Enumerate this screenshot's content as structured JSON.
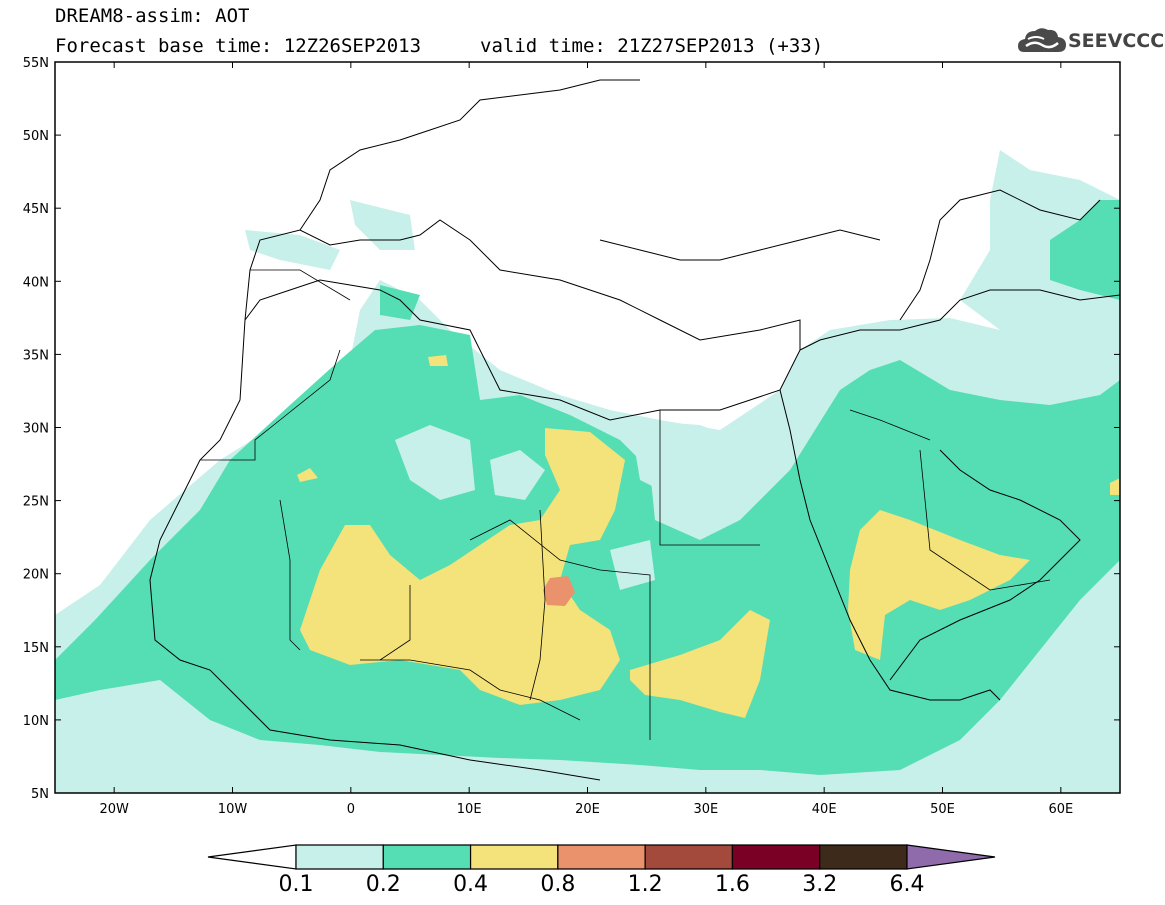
{
  "header": {
    "line1": "DREAM8-assim: AOT",
    "line2_base": "Forecast base time: 12Z26SEP2013",
    "line2_valid": "valid time: 21Z27SEP2013 (+33)"
  },
  "logo": {
    "text": "SEEVCCC",
    "icon": "cloud-icon"
  },
  "map": {
    "lon_range": [
      -25,
      65
    ],
    "lat_range": [
      5,
      55
    ],
    "lat_labels": [
      "55N",
      "50N",
      "45N",
      "40N",
      "35N",
      "30N",
      "25N",
      "20N",
      "15N",
      "10N",
      "5N"
    ],
    "lon_labels": [
      "20W",
      "10W",
      "0",
      "10E",
      "20E",
      "30E",
      "40E",
      "50E",
      "60E"
    ]
  },
  "colorbar": {
    "labels": [
      "0.1",
      "0.2",
      "0.4",
      "0.8",
      "1.2",
      "1.6",
      "3.2",
      "6.4"
    ],
    "colors": [
      "#ffffff",
      "#c8f0ea",
      "#55ddb3",
      "#f4e27a",
      "#e9926c",
      "#a34a3c",
      "#7a0025",
      "#3e2a1a",
      "#8f6bab"
    ]
  }
}
